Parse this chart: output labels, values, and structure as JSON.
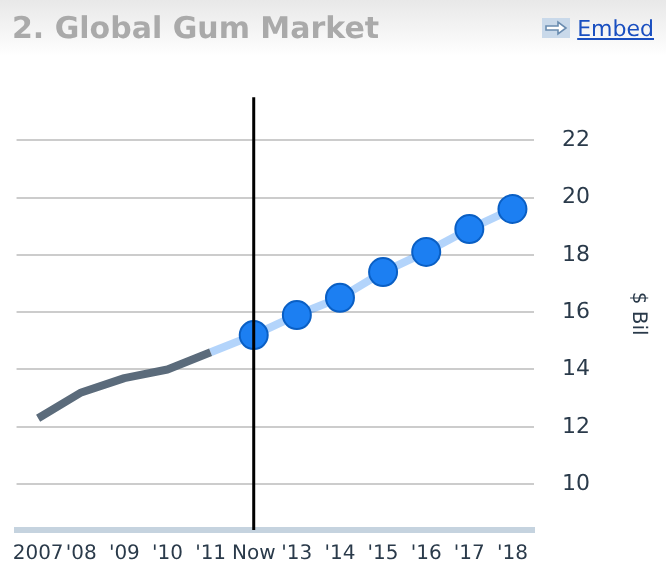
{
  "chart_data": {
    "type": "line",
    "title": "2. Global Gum Market",
    "ylabel": "$ Bil",
    "annotations": [
      "Embed"
    ],
    "categories": [
      "2007",
      "'08",
      "'09",
      "'10",
      "'11",
      "Now",
      "'13",
      "'14",
      "'15",
      "'16",
      "'17",
      "'18"
    ],
    "series": [
      {
        "color": "#5b6b7b",
        "marker": "none",
        "values": [
          12.3,
          13.2,
          13.7,
          14.0,
          14.6,
          null,
          null,
          null,
          null,
          null,
          null,
          null
        ]
      },
      {
        "color": "#1c7ff2",
        "marker": "circle",
        "values": [
          null,
          null,
          null,
          null,
          14.6,
          15.2,
          15.9,
          16.5,
          17.4,
          18.1,
          18.9,
          19.6
        ]
      }
    ],
    "ylim": [
      8.4,
      23.5
    ],
    "yticks": [
      10,
      12,
      14,
      16,
      18,
      20,
      22
    ],
    "grid": "y",
    "legend": false,
    "ref_lines": [
      {
        "axis": "x",
        "value": "Now",
        "color": "#000000"
      }
    ]
  }
}
